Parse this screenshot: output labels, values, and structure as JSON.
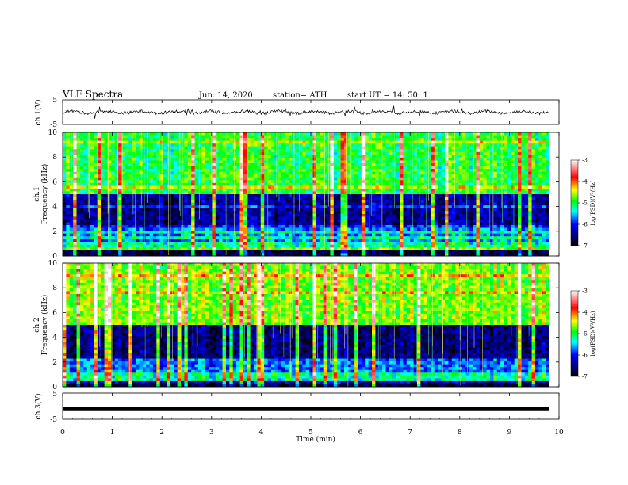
{
  "header": {
    "title": "VLF  Spectra",
    "date": "Jun. 14, 2020",
    "station": "station= ATH",
    "start_ut": "start  UT  =    14: 50: 1"
  },
  "chart_data": [
    {
      "type": "line",
      "panel": "ch1-waveform",
      "ylabel": "ch.1(V)",
      "yticks": [
        "5",
        "-5"
      ],
      "ylim": [
        -5,
        5
      ],
      "xlim": [
        0,
        10
      ],
      "baseline": 0,
      "signal_end_min": 9.8
    },
    {
      "type": "heatmap",
      "panel": "ch1-spectrogram",
      "ylabel": "ch.1\nFrequency  (kHz)",
      "yticks": [
        "0",
        "2",
        "4",
        "6",
        "8",
        "10"
      ],
      "ylim": [
        0,
        10
      ],
      "xlim": [
        0,
        10
      ],
      "data_end_min": 9.8,
      "colorbar": {
        "label": "log(PSD)(V²/Hz)",
        "ticks": [
          "-3",
          "-4",
          "-5",
          "-6",
          "-7"
        ],
        "range": [
          -7,
          -3
        ]
      }
    },
    {
      "type": "heatmap",
      "panel": "ch2-spectrogram",
      "ylabel": "ch.2\nFrequency  (kHz)",
      "yticks": [
        "0",
        "2",
        "4",
        "6",
        "8",
        "10"
      ],
      "ylim": [
        0,
        10
      ],
      "xlim": [
        0,
        10
      ],
      "data_end_min": 9.8,
      "colorbar": {
        "label": "log(PSD)(V²/Hz)",
        "ticks": [
          "-3",
          "-4",
          "-5",
          "-6",
          "-7"
        ],
        "range": [
          -7,
          -3
        ]
      }
    },
    {
      "type": "line",
      "panel": "ch3-waveform",
      "ylabel": "ch.3(V)",
      "yticks": [
        "5",
        "-5"
      ],
      "ylim": [
        -5,
        5
      ],
      "xlim": [
        0,
        10
      ],
      "baseline": -1,
      "signal_end_min": 9.8
    }
  ],
  "xaxis": {
    "label": "Time  (min)",
    "ticks": [
      "0",
      "1",
      "2",
      "3",
      "4",
      "5",
      "6",
      "7",
      "8",
      "9",
      "10"
    ]
  },
  "colors": {
    "spectrum_low": "#000000",
    "spectrum_mid_low": "#0000ff",
    "spectrum_mid": "#00ff00",
    "spectrum_high": "#ffff00",
    "spectrum_top": "#ff0000",
    "spectrum_max": "#ffffff"
  }
}
